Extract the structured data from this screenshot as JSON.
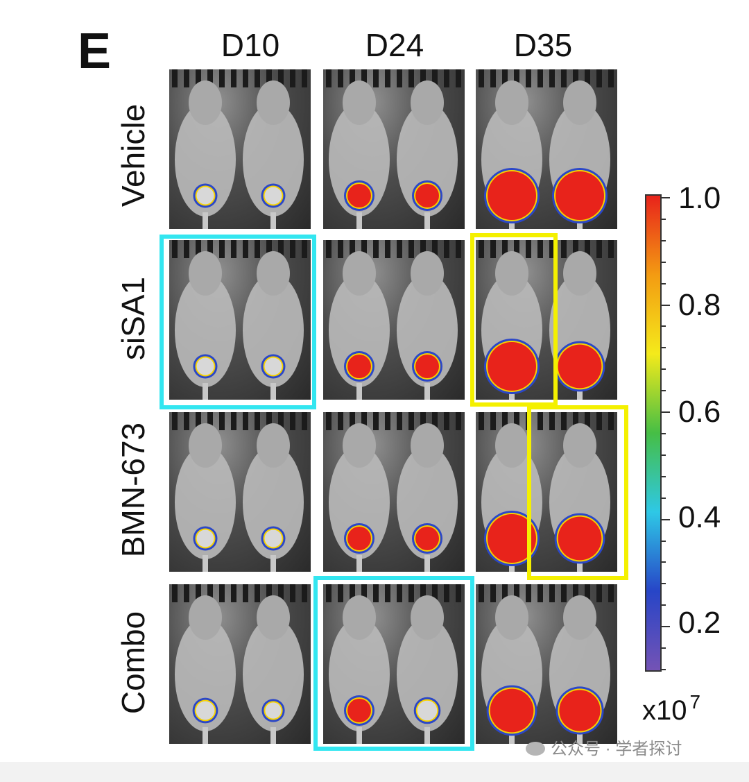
{
  "panel_label": "E",
  "columns": [
    "D10",
    "D24",
    "D35"
  ],
  "rows": [
    "Vehicle",
    "siSA1",
    "BMN-673",
    "Combo"
  ],
  "colors": {
    "cyan_box": "#33e6f0",
    "yellow_box": "#f4f000",
    "mouse": "#b9b9b9",
    "signal_high": "#e8231b",
    "signal_mid": "#f6d200",
    "signal_low": "#2b47c8"
  },
  "colorbar": {
    "ticks": [
      "1.0",
      "0.8",
      "0.6",
      "0.4",
      "0.2"
    ],
    "unit": "x10",
    "unit_exponent": "7",
    "gradient": [
      "#e8231b",
      "#f39b12",
      "#f4ea1b",
      "#46be45",
      "#2ec8e6",
      "#2745c7",
      "#7453b5"
    ]
  },
  "watermark": "公众号 · 学者探讨"
}
